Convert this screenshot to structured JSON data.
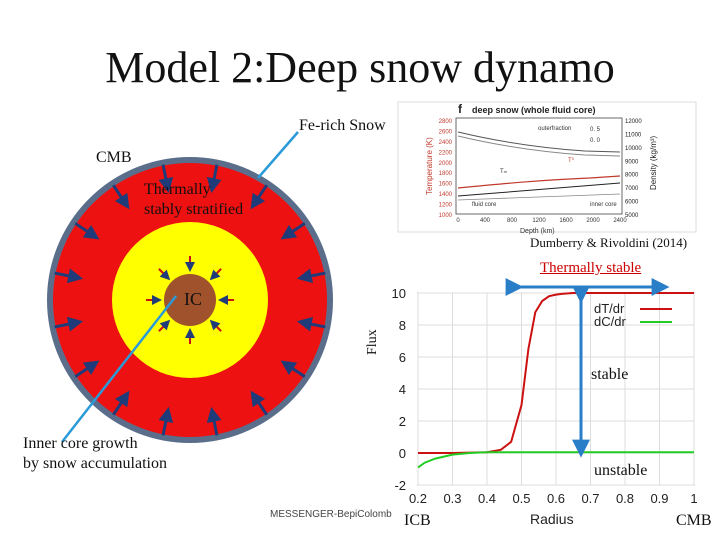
{
  "title": "Model 2:Deep snow dynamo",
  "labels": {
    "fe_rich_snow": "Fe-rich Snow",
    "cmb_top": "CMB",
    "thermally_stratified_line1": "Thermally",
    "thermally_stratified_line2": "stably stratified",
    "ic": "IC",
    "inner_core_line1": "Inner core growth",
    "inner_core_line2": "by snow accumulation",
    "citation": "Dumberry & Rivoldini (2014)",
    "thermally_stable": "Thermally stable",
    "stable": "stable",
    "unstable": "unstable",
    "icb": "ICB",
    "cmb_bottom": "CMB",
    "footer": "MESSENGER-BepiColomb"
  },
  "colors": {
    "outer_core": "#ee1111",
    "stable_layer_ring": "#ee1111",
    "fluid_core": "#ffff00",
    "inner_core": "#a0522d",
    "mantle_edge": "#5a6e8c",
    "arrow": "#1f3b7a",
    "pointer": "#2a9bd8",
    "series_dT": "#cc1111",
    "series_dC": "#22cc22",
    "stable_arrow": "#2a7ec8",
    "thermally_stable_text": "#cc0000"
  },
  "inset": {
    "panel_letter": "f",
    "heading": "deep snow (whole fluid core)",
    "y_left_label": "Temperature (K)",
    "y_right_label": "Density (kg/m³)",
    "x_label": "Depth (km)",
    "left_ticks": [
      "2800",
      "2600",
      "2400",
      "2200",
      "2000",
      "1800",
      "1600",
      "1400",
      "1200",
      "1000"
    ],
    "right_ticks": [
      "12000",
      "11000",
      "10000",
      "9000",
      "8000",
      "7000",
      "6000",
      "5000"
    ],
    "x_ticks": [
      "0",
      "400",
      "800",
      "1200",
      "1600",
      "2000",
      "2400"
    ],
    "annotations": [
      "outerfraction",
      "0. 5",
      "0. 0",
      "T⁰",
      "Tₘ",
      "fluid core",
      "inner core"
    ]
  },
  "chart_data": {
    "type": "line",
    "xlabel": "Radius",
    "ylabel": "Flux",
    "xlim": [
      0.2,
      1.0
    ],
    "ylim": [
      -2,
      10
    ],
    "x_ticks": [
      "0.2",
      "0.3",
      "0.4",
      "0.5",
      "0.6",
      "0.7",
      "0.8",
      "0.9",
      "1"
    ],
    "y_ticks": [
      "-2",
      "0",
      "2",
      "4",
      "6",
      "8",
      "10"
    ],
    "legend": "top-right",
    "grid": true,
    "series": [
      {
        "name": "dT/dr",
        "x": [
          0.2,
          0.3,
          0.4,
          0.44,
          0.47,
          0.5,
          0.52,
          0.54,
          0.56,
          0.58,
          0.6,
          0.62,
          0.65,
          0.7,
          0.8,
          0.9,
          1.0
        ],
        "y": [
          0.0,
          0.0,
          0.05,
          0.2,
          0.7,
          3.0,
          6.5,
          8.8,
          9.5,
          9.8,
          9.9,
          9.95,
          10.0,
          10.0,
          10.0,
          10.0,
          10.0
        ]
      },
      {
        "name": "dC/dr",
        "x": [
          0.2,
          0.22,
          0.25,
          0.3,
          0.35,
          0.4,
          0.5,
          0.6,
          0.7,
          0.8,
          0.9,
          1.0
        ],
        "y": [
          -0.9,
          -0.6,
          -0.35,
          -0.1,
          0.0,
          0.05,
          0.05,
          0.05,
          0.05,
          0.05,
          0.05,
          0.05
        ]
      }
    ]
  }
}
